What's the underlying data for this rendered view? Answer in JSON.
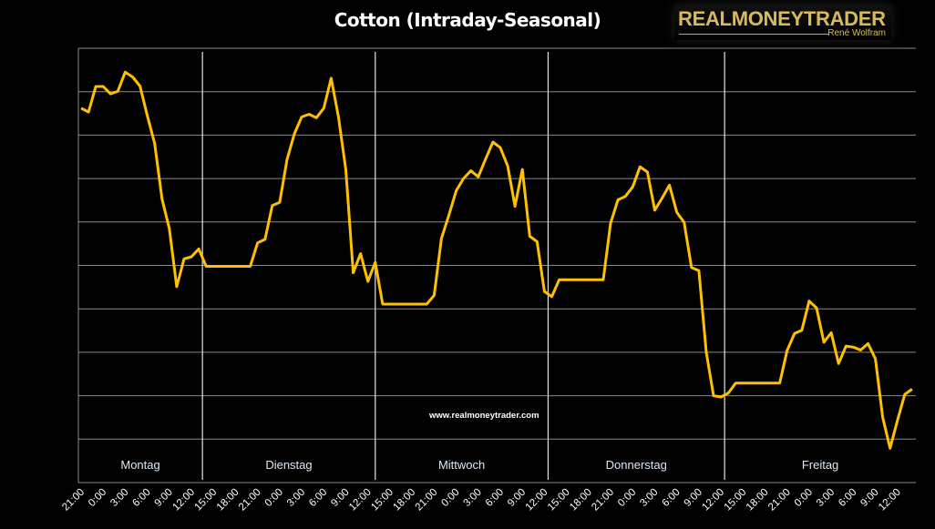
{
  "chart_data": {
    "type": "line",
    "title": "Cotton (Intraday-Seasonal)",
    "xlabel": "",
    "ylabel": "",
    "grid": true,
    "y_tick_labels": false,
    "ylim": [
      0,
      10
    ],
    "line_color": "#ffc000",
    "background": "#000000",
    "x_tick_labels": [
      "21:00",
      "0:00",
      "3:00",
      "6:00",
      "9:00",
      "12:00",
      "15:00",
      "18:00",
      "21:00",
      "0:00",
      "3:00",
      "6:00",
      "9:00",
      "12:00",
      "15:00",
      "18:00",
      "21:00",
      "0:00",
      "3:00",
      "6:00",
      "9:00",
      "12:00",
      "15:00",
      "18:00",
      "21:00",
      "0:00",
      "3:00",
      "6:00",
      "9:00",
      "12:00",
      "15:00",
      "18:00",
      "21:00",
      "0:00",
      "3:00",
      "6:00",
      "9:00",
      "12:00"
    ],
    "days": [
      "Montag",
      "Dienstag",
      "Mittwoch",
      "Donnerstag",
      "Freitag"
    ],
    "x": [
      "21:00",
      "22:00",
      "23:00",
      "0:00",
      "1:00",
      "2:00",
      "3:00",
      "4:00",
      "5:00",
      "6:00",
      "7:00",
      "8:00",
      "9:00",
      "10:00",
      "11:00",
      "12:00",
      "13:00",
      "14:00",
      "15:00",
      "16:00",
      "17:00",
      "18:00",
      "19:00",
      "20:00",
      "21:00",
      "22:00",
      "23:00",
      "0:00",
      "1:00",
      "2:00",
      "3:00",
      "4:00",
      "5:00",
      "6:00",
      "7:00",
      "8:00",
      "9:00",
      "10:00",
      "11:00",
      "12:00",
      "13:00",
      "14:00",
      "15:00",
      "16:00",
      "17:00",
      "18:00",
      "19:00",
      "20:00",
      "21:00",
      "22:00",
      "23:00",
      "0:00",
      "1:00",
      "2:00",
      "3:00",
      "4:00",
      "5:00",
      "6:00",
      "7:00",
      "8:00",
      "9:00",
      "10:00",
      "11:00",
      "12:00",
      "13:00",
      "14:00",
      "15:00",
      "16:00",
      "17:00",
      "18:00",
      "19:00",
      "20:00",
      "21:00",
      "22:00",
      "23:00",
      "0:00",
      "1:00",
      "2:00",
      "3:00",
      "4:00",
      "5:00",
      "6:00",
      "7:00",
      "8:00",
      "9:00",
      "10:00",
      "11:00",
      "12:00",
      "13:00",
      "14:00",
      "15:00",
      "16:00",
      "17:00",
      "18:00",
      "19:00",
      "20:00",
      "21:00",
      "22:00",
      "23:00",
      "0:00",
      "1:00",
      "2:00",
      "3:00",
      "4:00",
      "5:00",
      "6:00",
      "7:00",
      "8:00",
      "9:00",
      "10:00",
      "11:00",
      "12:00",
      "13:00",
      "14:00"
    ],
    "values": [
      8.62,
      8.53,
      9.12,
      9.12,
      8.95,
      9.01,
      9.45,
      9.34,
      9.13,
      8.45,
      7.81,
      6.53,
      5.85,
      4.51,
      5.15,
      5.2,
      5.38,
      4.98,
      4.98,
      4.98,
      4.98,
      4.98,
      4.98,
      4.98,
      5.52,
      5.6,
      6.38,
      6.45,
      7.44,
      8.03,
      8.42,
      8.48,
      8.4,
      8.62,
      9.31,
      8.42,
      7.2,
      4.83,
      5.27,
      4.63,
      5.07,
      4.11,
      4.11,
      4.11,
      4.11,
      4.11,
      4.11,
      4.11,
      4.31,
      5.62,
      6.15,
      6.72,
      7.0,
      7.18,
      7.04,
      7.45,
      7.84,
      7.71,
      7.29,
      6.36,
      7.21,
      5.67,
      5.55,
      4.4,
      4.28,
      4.67,
      4.67,
      4.67,
      4.67,
      4.67,
      4.67,
      4.67,
      5.97,
      6.51,
      6.59,
      6.81,
      7.27,
      7.15,
      6.27,
      6.55,
      6.85,
      6.22,
      5.99,
      4.95,
      4.88,
      3.0,
      2.0,
      1.97,
      2.06,
      2.29,
      2.29,
      2.29,
      2.29,
      2.29,
      2.29,
      2.29,
      3.04,
      3.43,
      3.51,
      4.18,
      4.02,
      3.23,
      3.45,
      2.74,
      3.14,
      3.12,
      3.05,
      3.2,
      2.85,
      1.5,
      0.79,
      1.43,
      2.03,
      2.15
    ]
  },
  "logo": {
    "name": "REALMONEYTRADER",
    "author": "René Wolfram"
  },
  "watermark": "www.realmoneytrader.com"
}
